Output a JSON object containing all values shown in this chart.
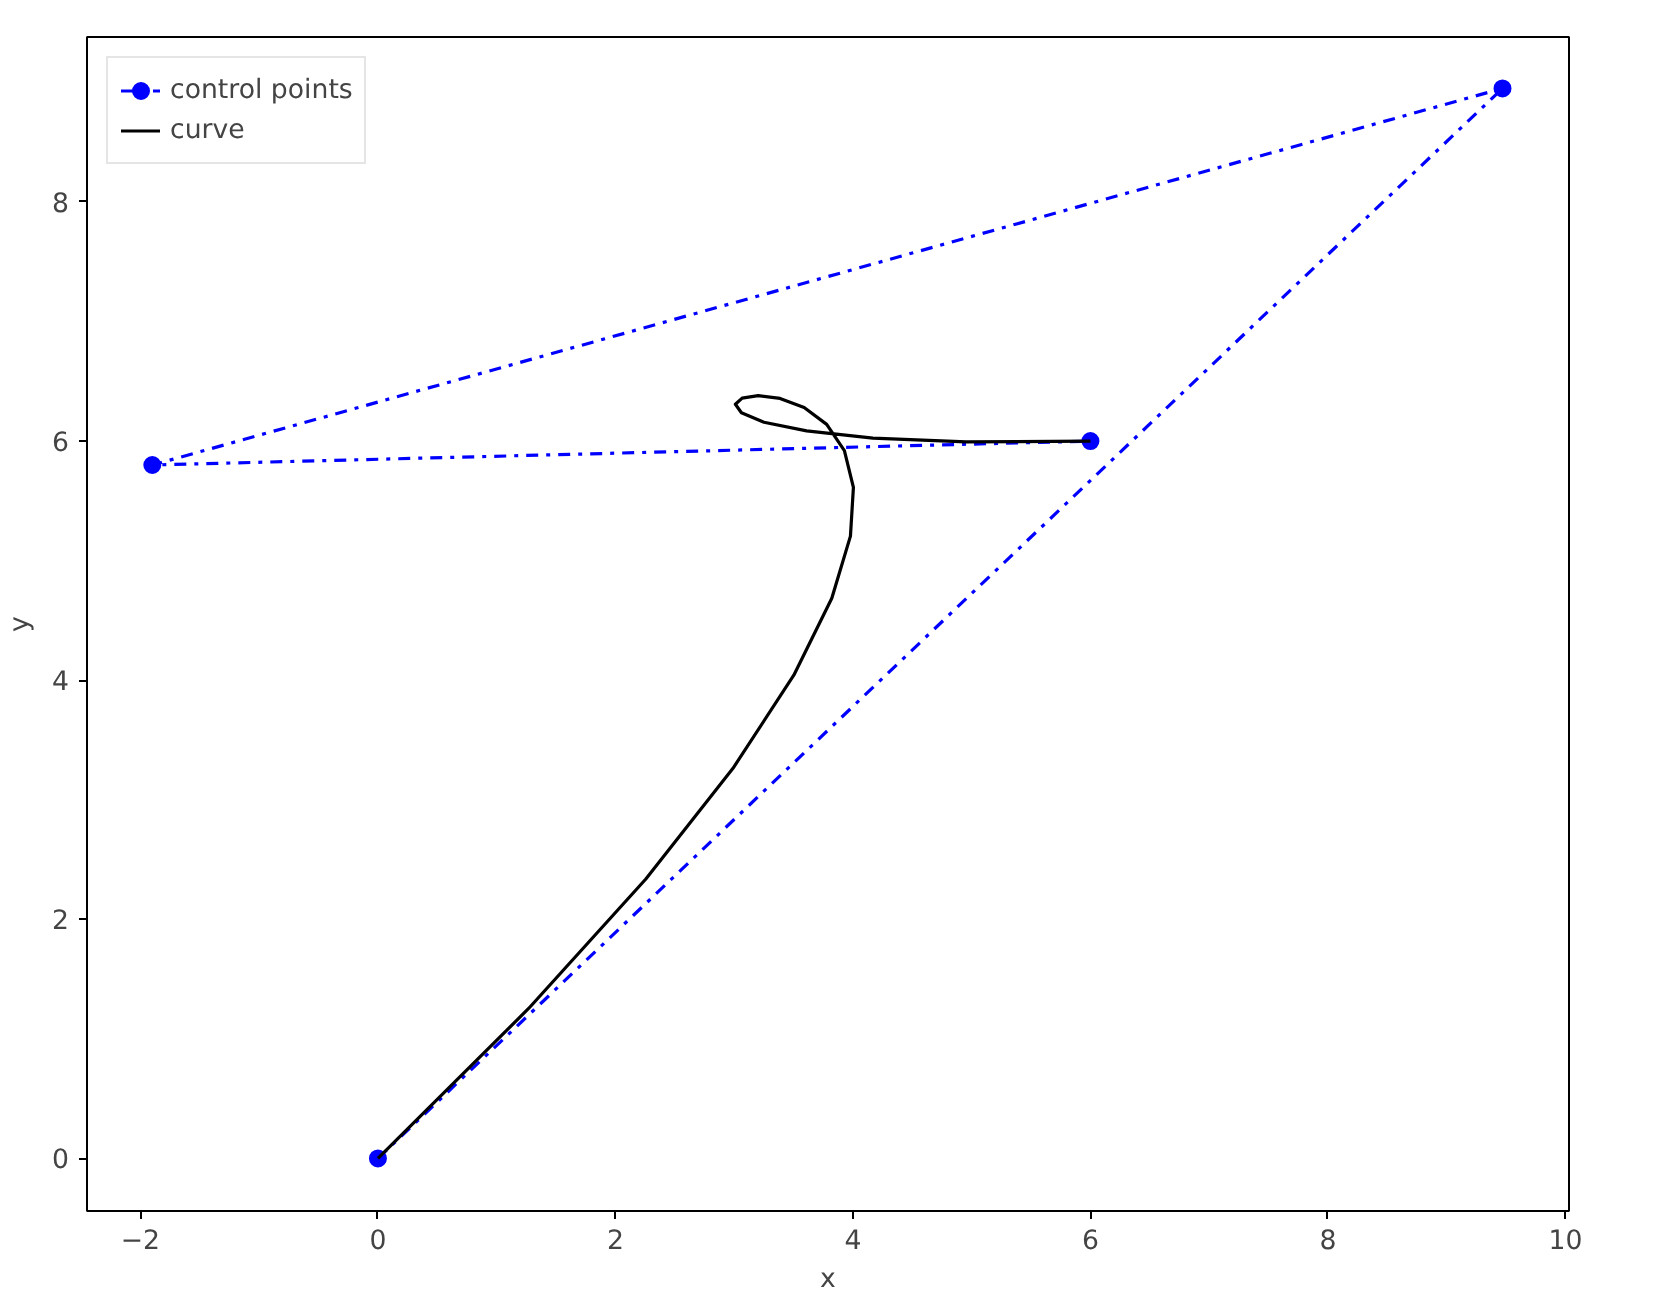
{
  "chart_data": {
    "type": "line",
    "xlabel": "x",
    "ylabel": "y",
    "xlim": [
      -2.45,
      10.03
    ],
    "ylim": [
      -0.44,
      9.38
    ],
    "xticks": [
      -2,
      0,
      2,
      4,
      6,
      8,
      10
    ],
    "yticks": [
      0,
      2,
      4,
      6,
      8
    ],
    "grid": false,
    "legend": "top left",
    "series": [
      {
        "name": "control points",
        "color": "#0000ff",
        "marker": "circle",
        "line_style": "dashed",
        "x": [
          0,
          9.47,
          -1.9,
          6
        ],
        "values": [
          0,
          8.95,
          5.8,
          6
        ]
      },
      {
        "name": "curve",
        "color": "#000000",
        "marker": "none",
        "line_style": "solid",
        "x": [
          0,
          1.269,
          2.256,
          2.99,
          3.502,
          3.822,
          3.979,
          4.004,
          3.928,
          3.779,
          3.589,
          3.386,
          3.202,
          3.067,
          3.01,
          3.061,
          3.251,
          3.61,
          4.168,
          4.954,
          6
        ],
        "values": [
          0,
          1.254,
          2.337,
          3.263,
          4.042,
          4.686,
          5.205,
          5.613,
          5.921,
          6.14,
          6.281,
          6.357,
          6.38,
          6.359,
          6.308,
          6.237,
          6.158,
          6.085,
          6.025,
          5.993,
          6
        ]
      }
    ]
  }
}
